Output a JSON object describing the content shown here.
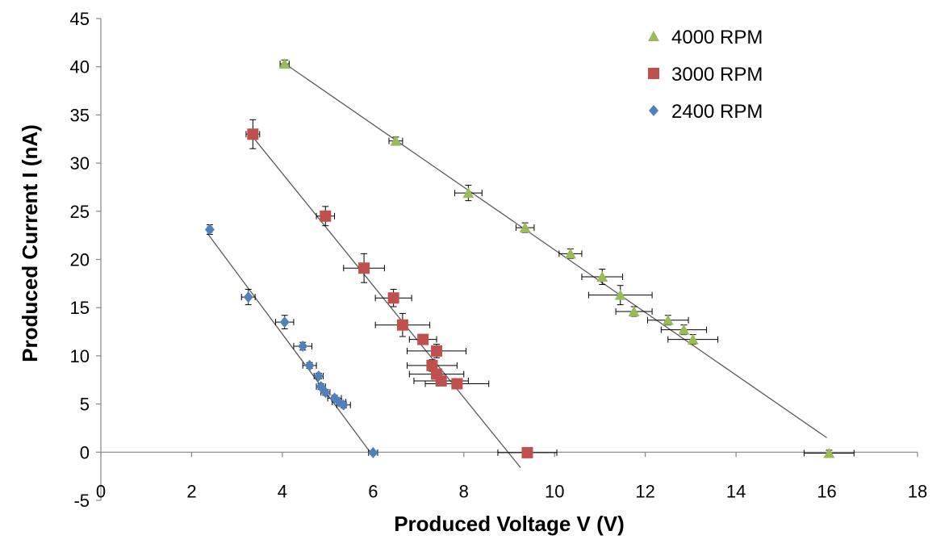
{
  "chart_data": {
    "type": "scatter",
    "title": "",
    "xlabel": "Produced Voltage V (V)",
    "ylabel": "Produced Current I (nA)",
    "xlim": [
      0,
      18
    ],
    "ylim": [
      -5,
      45
    ],
    "x_ticks": [
      0,
      2,
      4,
      6,
      8,
      10,
      12,
      14,
      16,
      18
    ],
    "y_ticks": [
      -5,
      0,
      5,
      10,
      15,
      20,
      25,
      30,
      35,
      40,
      45
    ],
    "grid": false,
    "legend_position": "top-right",
    "series": [
      {
        "name": "4000 RPM",
        "marker": "triangle",
        "color": "#9BBB59",
        "trendline": [
          [
            4.0,
            40.5
          ],
          [
            16.0,
            1.5
          ]
        ],
        "points": [
          {
            "x": 4.05,
            "y": 40.3,
            "xerr": 0.1,
            "yerr": 0.4
          },
          {
            "x": 6.5,
            "y": 32.3,
            "xerr": 0.15,
            "yerr": 0.4
          },
          {
            "x": 8.1,
            "y": 26.9,
            "xerr": 0.3,
            "yerr": 0.8
          },
          {
            "x": 9.35,
            "y": 23.3,
            "xerr": 0.2,
            "yerr": 0.5
          },
          {
            "x": 10.35,
            "y": 20.6,
            "xerr": 0.25,
            "yerr": 0.5
          },
          {
            "x": 11.05,
            "y": 18.2,
            "xerr": 0.45,
            "yerr": 0.8
          },
          {
            "x": 11.45,
            "y": 16.3,
            "xerr": 0.7,
            "yerr": 1.0
          },
          {
            "x": 11.75,
            "y": 14.6,
            "xerr": 0.4,
            "yerr": 0.5
          },
          {
            "x": 12.5,
            "y": 13.7,
            "xerr": 0.45,
            "yerr": 0.5
          },
          {
            "x": 12.85,
            "y": 12.7,
            "xerr": 0.5,
            "yerr": 0.5
          },
          {
            "x": 13.05,
            "y": 11.7,
            "xerr": 0.55,
            "yerr": 0.5
          },
          {
            "x": 16.05,
            "y": -0.1,
            "xerr": 0.55,
            "yerr": 0.3
          }
        ]
      },
      {
        "name": "3000 RPM",
        "marker": "square",
        "color": "#C0504D",
        "trendline": [
          [
            3.3,
            33.0
          ],
          [
            9.25,
            -1.6
          ]
        ],
        "points": [
          {
            "x": 3.35,
            "y": 33.0,
            "xerr": 0.15,
            "yerr": 1.5
          },
          {
            "x": 4.95,
            "y": 24.5,
            "xerr": 0.2,
            "yerr": 1.0
          },
          {
            "x": 5.8,
            "y": 19.1,
            "xerr": 0.45,
            "yerr": 1.5
          },
          {
            "x": 6.45,
            "y": 16.0,
            "xerr": 0.4,
            "yerr": 0.9
          },
          {
            "x": 6.65,
            "y": 13.2,
            "xerr": 0.6,
            "yerr": 1.2
          },
          {
            "x": 7.1,
            "y": 11.7,
            "xerr": 0.3,
            "yerr": 0.4
          },
          {
            "x": 7.4,
            "y": 10.5,
            "xerr": 0.65,
            "yerr": 0.7
          },
          {
            "x": 7.3,
            "y": 9.0,
            "xerr": 0.55,
            "yerr": 0.6
          },
          {
            "x": 7.4,
            "y": 8.1,
            "xerr": 0.6,
            "yerr": 0.5
          },
          {
            "x": 7.5,
            "y": 7.4,
            "xerr": 0.6,
            "yerr": 0.4
          },
          {
            "x": 7.85,
            "y": 7.1,
            "xerr": 0.7,
            "yerr": 0.5
          },
          {
            "x": 9.4,
            "y": -0.05,
            "xerr": 0.65,
            "yerr": 0.3
          }
        ]
      },
      {
        "name": "2400 RPM",
        "marker": "diamond",
        "color": "#4F81BD",
        "trendline": [
          [
            2.35,
            22.7
          ],
          [
            6.0,
            -0.4
          ]
        ],
        "points": [
          {
            "x": 2.4,
            "y": 23.1,
            "xerr": 0.05,
            "yerr": 0.5
          },
          {
            "x": 3.25,
            "y": 16.1,
            "xerr": 0.15,
            "yerr": 0.8
          },
          {
            "x": 4.05,
            "y": 13.5,
            "xerr": 0.2,
            "yerr": 0.7
          },
          {
            "x": 4.45,
            "y": 11.0,
            "xerr": 0.2,
            "yerr": 0.4
          },
          {
            "x": 4.6,
            "y": 9.0,
            "xerr": 0.15,
            "yerr": 0.3
          },
          {
            "x": 4.8,
            "y": 7.9,
            "xerr": 0.1,
            "yerr": 0.3
          },
          {
            "x": 4.85,
            "y": 6.8,
            "xerr": 0.1,
            "yerr": 0.3
          },
          {
            "x": 4.95,
            "y": 6.2,
            "xerr": 0.1,
            "yerr": 0.3
          },
          {
            "x": 5.15,
            "y": 5.6,
            "xerr": 0.15,
            "yerr": 0.3
          },
          {
            "x": 5.25,
            "y": 5.2,
            "xerr": 0.15,
            "yerr": 0.3
          },
          {
            "x": 5.35,
            "y": 4.9,
            "xerr": 0.15,
            "yerr": 0.3
          },
          {
            "x": 6.0,
            "y": -0.05,
            "xerr": 0.1,
            "yerr": 0.2
          }
        ]
      }
    ]
  }
}
